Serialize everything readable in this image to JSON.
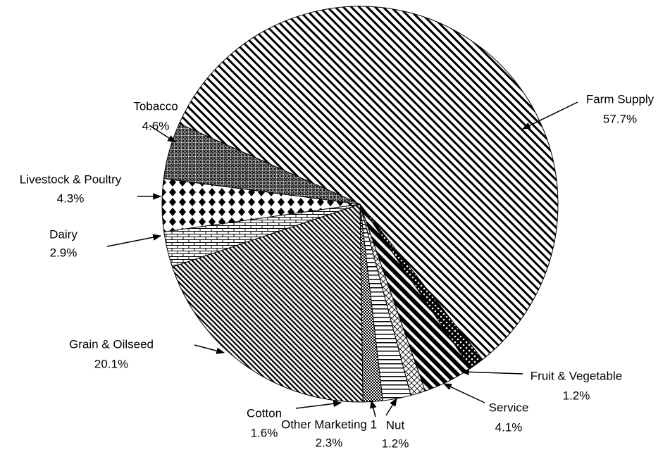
{
  "chart_data": {
    "type": "pie",
    "categories": [
      "Farm Supply",
      "Fruit & Vegetable",
      "Service",
      "Nut",
      "Other Marketing 1",
      "Cotton",
      "Grain & Oilseed",
      "Dairy",
      "Livestock & Poultry",
      "Tobacco"
    ],
    "values": [
      57.7,
      1.2,
      4.1,
      1.2,
      2.3,
      1.6,
      20.1,
      2.9,
      4.3,
      4.6
    ],
    "value_labels": [
      "57.7%",
      "1.2%",
      "4.1%",
      "1.2%",
      "2.3%",
      "1.6%",
      "20.1%",
      "2.9%",
      "4.3%",
      "4.6%"
    ]
  }
}
